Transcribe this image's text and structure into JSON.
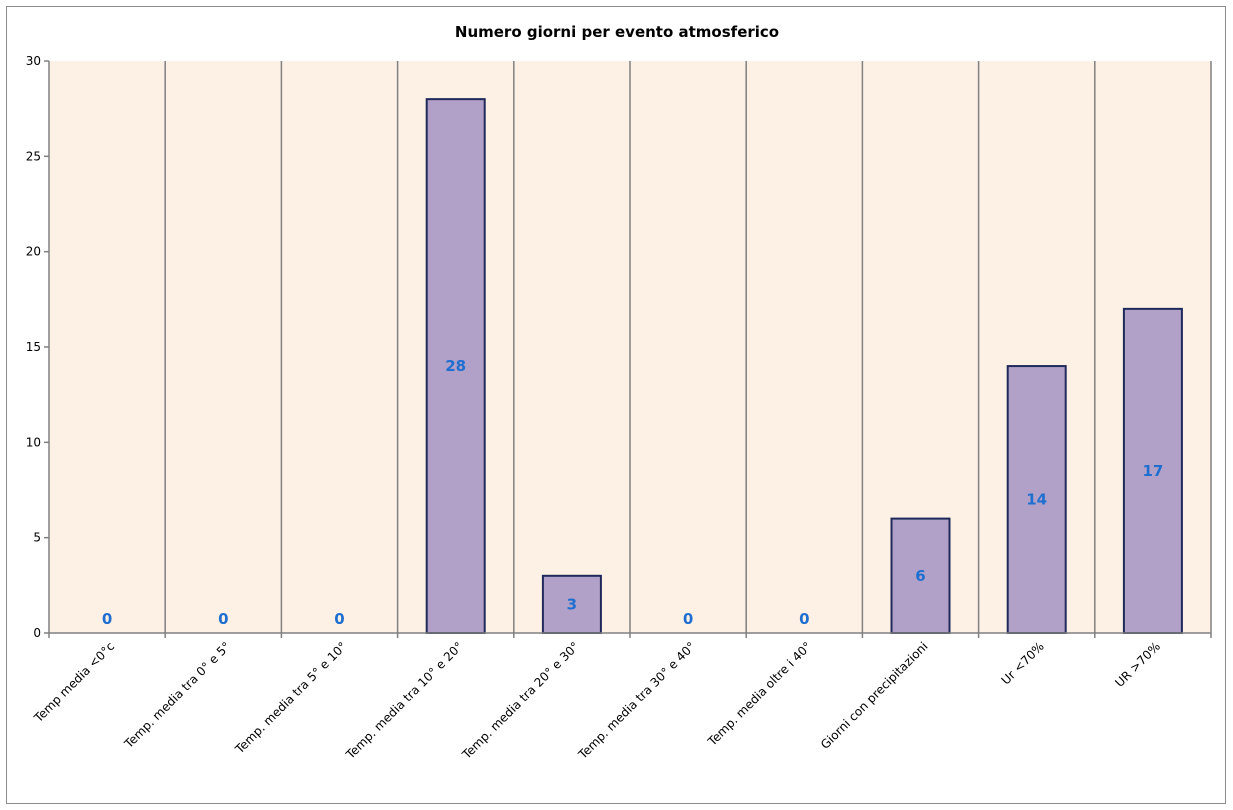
{
  "chart_data": {
    "type": "bar",
    "title": "Numero giorni  per evento atmosferico",
    "xlabel": "",
    "ylabel": "",
    "categories": [
      "Temp media <0°c",
      "Temp. media tra 0° e 5°",
      "Temp. media tra 5° e 10°",
      "Temp. media tra 10° e 20°",
      "Temp. media tra 20° e 30°",
      "Temp. media tra 30° e 40°",
      "Temp. media oltre i 40°",
      "Giorni con precipitazioni",
      "Ur  <70%",
      "UR >70%"
    ],
    "values": [
      0,
      0,
      0,
      28,
      3,
      0,
      0,
      6,
      14,
      17
    ],
    "data_labels": [
      "0",
      "0",
      "0",
      "28",
      "3",
      "0",
      "0",
      "6",
      "14",
      "17"
    ],
    "ylim": [
      0,
      30
    ],
    "yticks": [
      "0",
      "5",
      "10",
      "15",
      "20",
      "25",
      "30"
    ],
    "grid": "vertical-category-separators",
    "legend": "none",
    "colors": {
      "bar_fill": "#b1a0c7",
      "bar_stroke": "#1f2a5a",
      "plot_background": "#fdf1e6",
      "grid": "#808080",
      "data_label": "#1f6fd1"
    }
  }
}
